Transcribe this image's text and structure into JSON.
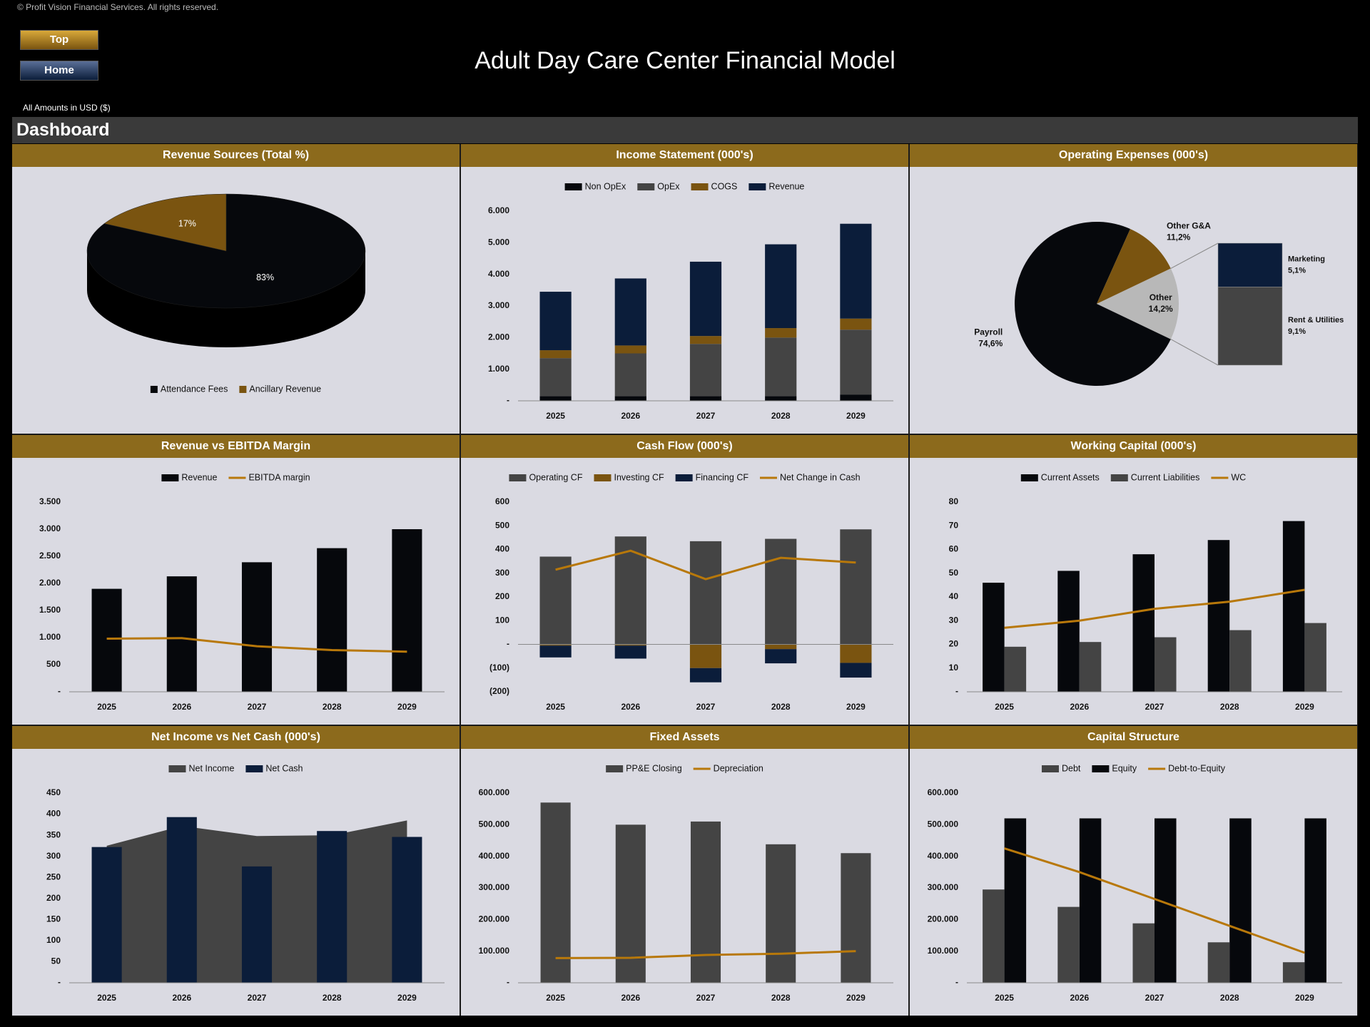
{
  "header": {
    "copyright": "© Profit Vision Financial Services. All rights reserved.",
    "buttons": [
      "Top",
      "Home"
    ],
    "title": "Adult Day Care Center Financial Model",
    "currency_note": "All Amounts in  USD ($)",
    "section": "Dashboard"
  },
  "chart_data": [
    {
      "type": "pie",
      "title": "Revenue Sources (Total %)",
      "three_d": true,
      "legend": "bottom",
      "categories": [
        "Attendance Fees",
        "Ancillary Revenue"
      ],
      "values": [
        83,
        17
      ],
      "value_labels": [
        "83%",
        "17%"
      ],
      "colors": [
        "#06080c",
        "#7a5410"
      ]
    },
    {
      "type": "bar",
      "title": "Income Statement (000's)",
      "stacked": true,
      "legend": "top",
      "categories": [
        "2025",
        "2026",
        "2027",
        "2028",
        "2029"
      ],
      "series": [
        {
          "name": "Non OpEx",
          "type": "bar",
          "color": "#06080c",
          "values": [
            150,
            150,
            150,
            150,
            200
          ]
        },
        {
          "name": "OpEx",
          "type": "bar",
          "color": "#444444",
          "values": [
            1200,
            1350,
            1650,
            1850,
            2050
          ]
        },
        {
          "name": "COGS",
          "type": "bar",
          "color": "#7a5410",
          "values": [
            250,
            250,
            250,
            300,
            350
          ]
        },
        {
          "name": "Revenue",
          "type": "bar",
          "color": "#0b1d3a",
          "values": [
            1850,
            2120,
            2350,
            2650,
            3000
          ]
        }
      ],
      "ylim": [
        0,
        6000
      ],
      "yticks": [
        {
          "value": 0,
          "label": "-"
        },
        {
          "value": 1000,
          "label": "1.000"
        },
        {
          "value": 2000,
          "label": "2.000"
        },
        {
          "value": 3000,
          "label": "3.000"
        },
        {
          "value": 4000,
          "label": "4.000"
        },
        {
          "value": 5000,
          "label": "5.000"
        },
        {
          "value": 6000,
          "label": "6.000"
        }
      ]
    },
    {
      "type": "pieofpie",
      "title": "Operating Expenses (000's)",
      "categories": [
        "Payroll",
        "Other G&A",
        "Other"
      ],
      "values": [
        74.6,
        11.2,
        14.2
      ],
      "value_labels": [
        "74,6%",
        "11,2%",
        "14,2%"
      ],
      "colors": [
        "#06080c",
        "#7a5410",
        "#b8b8b8"
      ],
      "secondary": {
        "categories": [
          "Marketing",
          "Rent & Utilities"
        ],
        "values": [
          5.1,
          9.1
        ],
        "value_labels": [
          "5,1%",
          "9,1%"
        ],
        "colors": [
          "#0b1d3a",
          "#444444"
        ]
      }
    },
    {
      "type": "bar",
      "title": "Revenue vs EBITDA Margin",
      "stacked": false,
      "legend": "top",
      "categories": [
        "2025",
        "2026",
        "2027",
        "2028",
        "2029"
      ],
      "series": [
        {
          "name": "Revenue",
          "type": "bar",
          "color": "#06080c",
          "values": [
            1900,
            2130,
            2390,
            2650,
            3000
          ]
        },
        {
          "name": "EBITDA margin",
          "type": "line",
          "color": "#b8780a",
          "values": [
            980,
            990,
            840,
            770,
            740
          ]
        }
      ],
      "ylim": [
        0,
        3500
      ],
      "yticks": [
        {
          "value": 0,
          "label": "-"
        },
        500,
        {
          "value": 1000,
          "label": "1.000"
        },
        {
          "value": 1500,
          "label": "1.500"
        },
        {
          "value": 2000,
          "label": "2.000"
        },
        {
          "value": 2500,
          "label": "2.500"
        },
        {
          "value": 3000,
          "label": "3.000"
        },
        {
          "value": 3500,
          "label": "3.500"
        }
      ]
    },
    {
      "type": "bar",
      "title": "Cash Flow (000's)",
      "stacked": true,
      "legend": "top",
      "categories": [
        "2025",
        "2026",
        "2027",
        "2028",
        "2029"
      ],
      "series": [
        {
          "name": "Operating CF",
          "type": "bar",
          "color": "#444444",
          "values": [
            370,
            455,
            435,
            445,
            485
          ]
        },
        {
          "name": "Investing CF",
          "type": "bar",
          "color": "#7a5410",
          "values": [
            -5,
            -5,
            -100,
            -20,
            -78
          ]
        },
        {
          "name": "Financing CF",
          "type": "bar",
          "color": "#0b1d3a",
          "values": [
            -50,
            -55,
            -60,
            -60,
            -62
          ]
        },
        {
          "name": "Net Change in Cash",
          "type": "line",
          "color": "#b8780a",
          "values": [
            315,
            395,
            275,
            365,
            345
          ]
        }
      ],
      "ylim": [
        -200,
        600
      ],
      "yticks": [
        {
          "value": -200,
          "label": "(200)"
        },
        {
          "value": -100,
          "label": "(100)"
        },
        {
          "value": 0,
          "label": "-"
        },
        100,
        200,
        300,
        400,
        500,
        600
      ]
    },
    {
      "type": "bar",
      "title": "Working Capital (000's)",
      "stacked": false,
      "legend": "top",
      "categories": [
        "2025",
        "2026",
        "2027",
        "2028",
        "2029"
      ],
      "series": [
        {
          "name": "Current Assets",
          "type": "bar",
          "color": "#06080c",
          "values": [
            46,
            51,
            58,
            64,
            72
          ]
        },
        {
          "name": "Current Liabilities",
          "type": "bar",
          "color": "#444444",
          "values": [
            19,
            21,
            23,
            26,
            29
          ]
        },
        {
          "name": "WC",
          "type": "line",
          "color": "#b8780a",
          "values": [
            27,
            30,
            35,
            38,
            43
          ]
        }
      ],
      "ylim": [
        0,
        80
      ],
      "yticks": [
        {
          "value": 0,
          "label": "-"
        },
        10,
        20,
        30,
        40,
        50,
        60,
        70,
        80
      ]
    },
    {
      "type": "bar",
      "title": "Net Income vs Net Cash (000's)",
      "stacked": false,
      "legend": "top",
      "categories": [
        "2025",
        "2026",
        "2027",
        "2028",
        "2029"
      ],
      "series": [
        {
          "name": "Net Income",
          "type": "area",
          "color": "#444444",
          "values": [
            325,
            372,
            348,
            350,
            385
          ]
        },
        {
          "name": "Net Cash",
          "type": "bar",
          "color": "#0b1d3a",
          "values": [
            322,
            393,
            276,
            360,
            346
          ]
        }
      ],
      "ylim": [
        0,
        450
      ],
      "yticks": [
        {
          "value": 0,
          "label": "-"
        },
        50,
        100,
        150,
        200,
        250,
        300,
        350,
        400,
        450
      ]
    },
    {
      "type": "bar",
      "title": "Fixed Assets",
      "stacked": false,
      "legend": "top",
      "categories": [
        "2025",
        "2026",
        "2027",
        "2028",
        "2029"
      ],
      "series": [
        {
          "name": "PP&E Closing",
          "type": "bar",
          "color": "#444444",
          "values": [
            570000,
            500000,
            510000,
            438000,
            410000
          ]
        },
        {
          "name": "Depreciation",
          "type": "line",
          "color": "#b8780a",
          "values": [
            78000,
            79000,
            88000,
            92000,
            100000
          ]
        }
      ],
      "ylim": [
        0,
        600000
      ],
      "yticks": [
        {
          "value": 0,
          "label": "-"
        },
        {
          "value": 100000,
          "label": "100.000"
        },
        {
          "value": 200000,
          "label": "200.000"
        },
        {
          "value": 300000,
          "label": "300.000"
        },
        {
          "value": 400000,
          "label": "400.000"
        },
        {
          "value": 500000,
          "label": "500.000"
        },
        {
          "value": 600000,
          "label": "600.000"
        }
      ]
    },
    {
      "type": "bar",
      "title": "Capital Structure",
      "stacked": false,
      "legend": "top",
      "categories": [
        "2025",
        "2026",
        "2027",
        "2028",
        "2029"
      ],
      "series": [
        {
          "name": "Debt",
          "type": "bar",
          "color": "#444444",
          "values": [
            295000,
            240000,
            188000,
            128000,
            65000
          ]
        },
        {
          "name": "Equity",
          "type": "bar",
          "color": "#06080c",
          "values": [
            520000,
            520000,
            520000,
            520000,
            520000
          ]
        },
        {
          "name": "Debt-to-Equity",
          "type": "line",
          "color": "#b8780a",
          "values": [
            425000,
            350000,
            265000,
            180000,
            95000
          ]
        }
      ],
      "ylim": [
        0,
        600000
      ],
      "yticks": [
        {
          "value": 0,
          "label": "-"
        },
        {
          "value": 100000,
          "label": "100.000"
        },
        {
          "value": 200000,
          "label": "200.000"
        },
        {
          "value": 300000,
          "label": "300.000"
        },
        {
          "value": 400000,
          "label": "400.000"
        },
        {
          "value": 500000,
          "label": "500.000"
        },
        {
          "value": 600000,
          "label": "600.000"
        }
      ]
    }
  ]
}
